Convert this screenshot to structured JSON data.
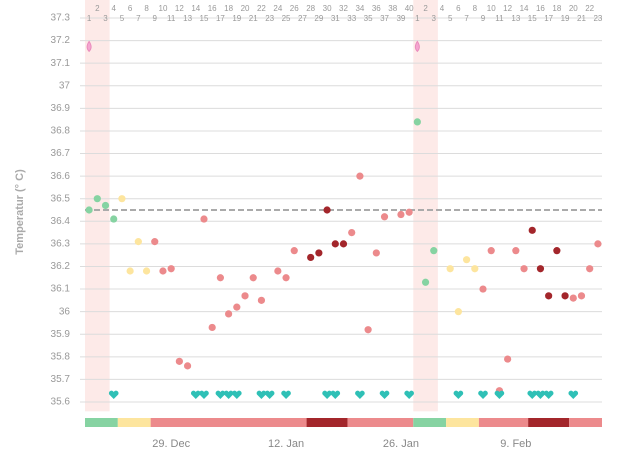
{
  "chart_data": {
    "type": "scatter",
    "y_label": "Temperatur (° C)",
    "categories": [
      1,
      2,
      3,
      4,
      5,
      6,
      7,
      8,
      9,
      10,
      11,
      12,
      13,
      14,
      15,
      16,
      17,
      18,
      19,
      20,
      21,
      22,
      23,
      24,
      25,
      26,
      27,
      28,
      29,
      30,
      31,
      32,
      33,
      34,
      35,
      36,
      37,
      38,
      39,
      40,
      1,
      2,
      3,
      4,
      5,
      6,
      7,
      8,
      9,
      10,
      11,
      12,
      13,
      14,
      15,
      16,
      17,
      18,
      19,
      20,
      21,
      22,
      23
    ],
    "values": [
      36.45,
      36.5,
      36.47,
      36.41,
      36.5,
      36.18,
      36.31,
      36.18,
      36.31,
      36.18,
      36.19,
      35.78,
      35.76,
      null,
      36.41,
      35.93,
      36.15,
      35.99,
      36.02,
      36.07,
      36.15,
      36.05,
      null,
      36.18,
      36.15,
      36.27,
      null,
      36.24,
      36.26,
      36.45,
      36.3,
      36.3,
      36.35,
      36.6,
      35.92,
      36.26,
      36.42,
      null,
      36.43,
      36.44,
      36.84,
      36.13,
      36.27,
      null,
      36.19,
      36.0,
      36.23,
      36.19,
      36.1,
      36.27,
      35.65,
      35.79,
      36.27,
      36.19,
      36.36,
      36.19,
      36.07,
      36.27,
      36.07,
      36.06,
      36.07,
      36.19,
      36.3
    ],
    "phases": [
      {
        "from": 0,
        "to": 3,
        "color": "#86d3a2"
      },
      {
        "from": 4,
        "to": 7,
        "color": "#fde59e"
      },
      {
        "from": 8,
        "to": 26,
        "color": "#ec8a8c"
      },
      {
        "from": 27,
        "to": 31,
        "color": "#a3262b"
      },
      {
        "from": 32,
        "to": 39,
        "color": "#ec8a8c"
      },
      {
        "from": 40,
        "to": 43,
        "color": "#86d3a2"
      },
      {
        "from": 44,
        "to": 47,
        "color": "#fde59e"
      },
      {
        "from": 48,
        "to": 53,
        "color": "#ec8a8c"
      },
      {
        "from": 54,
        "to": 58,
        "color": "#a3262b"
      },
      {
        "from": 59,
        "to": 62,
        "color": "#ec8a8c"
      }
    ],
    "menstruation": [
      [
        0,
        2
      ],
      [
        40,
        42
      ]
    ],
    "drops": {
      "x": [
        0,
        40
      ],
      "y": 37.17
    },
    "intercourse": [
      3,
      13,
      14,
      16,
      17,
      18,
      21,
      22,
      24,
      29,
      30,
      33,
      36,
      39,
      45,
      48,
      50,
      54,
      55,
      56,
      59
    ],
    "coverline": 36.45,
    "xticks": [
      {
        "value": 10,
        "label": "29. Dec"
      },
      {
        "value": 24,
        "label": "12. Jan"
      },
      {
        "value": 38,
        "label": "26. Jan"
      },
      {
        "value": 52,
        "label": "9. Feb"
      }
    ],
    "ylim": [
      35.55,
      37.35
    ],
    "yticks": [
      37.3,
      37.2,
      37.1,
      37,
      36.9,
      36.8,
      36.7,
      36.6,
      36.5,
      36.4,
      36.3,
      36.2,
      36.1,
      36,
      35.9,
      35.8,
      35.7,
      35.6
    ],
    "grid": true
  }
}
